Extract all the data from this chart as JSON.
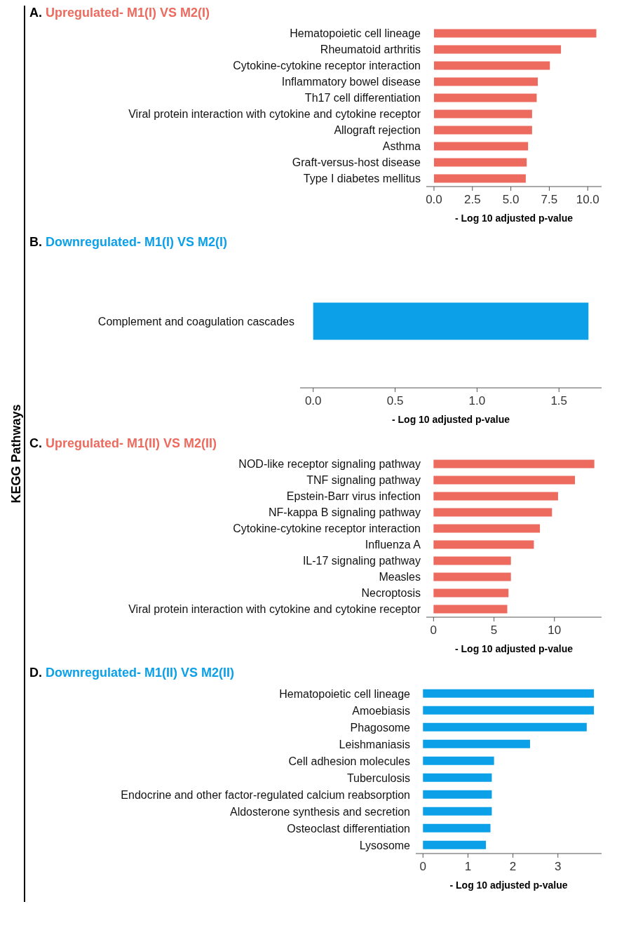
{
  "chart_data": [
    {
      "type": "bar",
      "orientation": "horizontal",
      "title": "A. Upregulated- M1(I) VS M2(I)",
      "annotations": [
        "KEGG Pathways"
      ],
      "xlabel": "- Log 10 adjusted p-value",
      "color": "#ec6b5e",
      "categories": [
        "Hematopoietic cell lineage",
        "Rheumatoid arthritis",
        "Cytokine-cytokine receptor interaction",
        "Inflammatory bowel disease",
        "Th17 cell differentiation",
        "Viral protein interaction with cytokine and cytokine receptor",
        "Allograft rejection",
        "Asthma",
        "Graft-versus-host disease",
        "Type I diabetes mellitus"
      ],
      "values": [
        10.56,
        8.26,
        7.54,
        6.75,
        6.68,
        6.38,
        6.38,
        6.12,
        6.03,
        5.97
      ],
      "xlim": [
        -0.5,
        10.9
      ],
      "xticks": [
        {
          "value": 0,
          "label": "0.0"
        },
        {
          "value": 2.5,
          "label": "2.5"
        },
        {
          "value": 5,
          "label": "5.0"
        },
        {
          "value": 7.5,
          "label": "7.5"
        },
        {
          "value": 10,
          "label": "10.0"
        }
      ]
    },
    {
      "type": "bar",
      "orientation": "horizontal",
      "title": "B. Downregulated- M1(I) VS M2(I)",
      "xlabel": "- Log 10 adjusted p-value",
      "color": "#0ca0e8",
      "categories": [
        "Complement and coagulation cascades"
      ],
      "values": [
        1.68
      ],
      "xlim": [
        -0.08,
        1.76
      ],
      "xticks": [
        {
          "value": 0,
          "label": "0.0"
        },
        {
          "value": 0.5,
          "label": "0.5"
        },
        {
          "value": 1,
          "label": "1.0"
        },
        {
          "value": 1.5,
          "label": "1.5"
        }
      ]
    },
    {
      "type": "bar",
      "orientation": "horizontal",
      "title": "C. Upregulated- M1(II) VS M2(II)",
      "xlabel": "- Log 10 adjusted p-value",
      "color": "#ec6b5e",
      "categories": [
        "NOD-like receptor signaling pathway",
        "TNF signaling pathway",
        "Epstein-Barr virus infection",
        "NF-kappa B signaling pathway",
        "Cytokine-cytokine receptor interaction",
        "Influenza A",
        "IL-17 signaling pathway",
        "Measles",
        "Necroptosis",
        "Viral protein interaction with cytokine and cytokine receptor"
      ],
      "values": [
        13.3,
        11.7,
        10.3,
        9.8,
        8.8,
        8.3,
        6.4,
        6.4,
        6.2,
        6.1
      ],
      "xlim": [
        -0.6,
        13.9
      ],
      "xticks": [
        0,
        5,
        10
      ]
    },
    {
      "type": "bar",
      "orientation": "horizontal",
      "title": "D. Downregulated- M1(II) VS M2(II)",
      "xlabel": "- Log 10 adjusted p-value",
      "color": "#0ca0e8",
      "categories": [
        "Hematopoietic cell lineage",
        "Amoebiasis",
        "Phagosome",
        "Leishmaniasis",
        "Cell adhesion molecules",
        "Tuberculosis",
        "Endocrine and other factor-regulated calcium reabsorption",
        "Aldosterone synthesis and secretion",
        "Osteoclast differentiation",
        "Lysosome"
      ],
      "values": [
        3.8,
        3.8,
        3.64,
        2.38,
        1.58,
        1.53,
        1.53,
        1.53,
        1.5,
        1.4
      ],
      "xlim": [
        -0.16,
        3.97
      ],
      "xticks": [
        0,
        1,
        2,
        3
      ]
    }
  ]
}
